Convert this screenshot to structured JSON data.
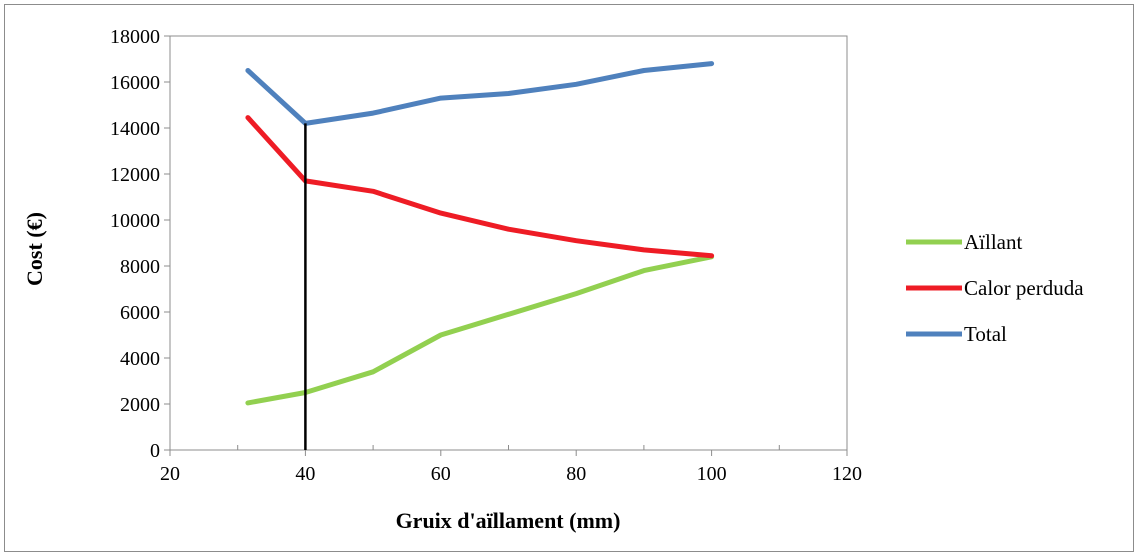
{
  "chart_data": {
    "type": "line",
    "title": "",
    "xlabel": "Gruix d'aïllament (mm)",
    "ylabel": "Cost (€)",
    "xlim": [
      20,
      120
    ],
    "ylim": [
      0,
      18000
    ],
    "x_ticks": [
      20,
      40,
      60,
      80,
      100,
      120
    ],
    "y_ticks": [
      0,
      2000,
      4000,
      6000,
      8000,
      10000,
      12000,
      14000,
      16000,
      18000
    ],
    "grid": false,
    "legend_position": "right",
    "series": [
      {
        "name": "Aïllant",
        "color": "#92D050",
        "x": [
          31.5,
          40,
          50,
          60,
          70,
          80,
          90,
          100
        ],
        "values": [
          2050,
          2500,
          3400,
          5000,
          5900,
          6800,
          7800,
          8400
        ]
      },
      {
        "name": "Calor perduda",
        "color": "#EE1C25",
        "x": [
          31.5,
          40,
          50,
          60,
          70,
          80,
          90,
          100
        ],
        "values": [
          14450,
          11700,
          11250,
          10300,
          9600,
          9100,
          8700,
          8450
        ]
      },
      {
        "name": "Total",
        "color": "#4F81BD",
        "x": [
          31.5,
          40,
          50,
          60,
          70,
          80,
          90,
          100
        ],
        "values": [
          16500,
          14200,
          14650,
          15300,
          15500,
          15900,
          16500,
          16800
        ]
      }
    ],
    "annotations": [
      {
        "type": "vertical-line",
        "x": 40,
        "y_from": 0,
        "y_to": 14200,
        "color": "#000000"
      }
    ]
  }
}
